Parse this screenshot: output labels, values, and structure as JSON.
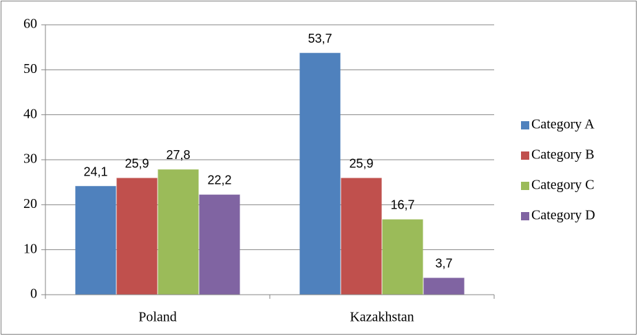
{
  "chart_data": {
    "type": "bar",
    "categories": [
      "Poland",
      "Kazakhstan"
    ],
    "series": [
      {
        "name": "Category A",
        "color": "#4f81bd",
        "values": [
          24.1,
          53.7
        ],
        "value_labels": [
          "24,1",
          "53,7"
        ]
      },
      {
        "name": "Category B",
        "color": "#c0504d",
        "values": [
          25.9,
          25.9
        ],
        "value_labels": [
          "25,9",
          "25,9"
        ]
      },
      {
        "name": "Category C",
        "color": "#9bbb59",
        "values": [
          27.8,
          16.7
        ],
        "value_labels": [
          "27,8",
          "16,7"
        ]
      },
      {
        "name": "Category D",
        "color": "#8064a2",
        "values": [
          22.2,
          3.7
        ],
        "value_labels": [
          "22,2",
          "3,7"
        ]
      }
    ],
    "ylim": [
      0,
      60
    ],
    "yticks": [
      0,
      10,
      20,
      30,
      40,
      50,
      60
    ],
    "grid": true,
    "legend": "right"
  }
}
